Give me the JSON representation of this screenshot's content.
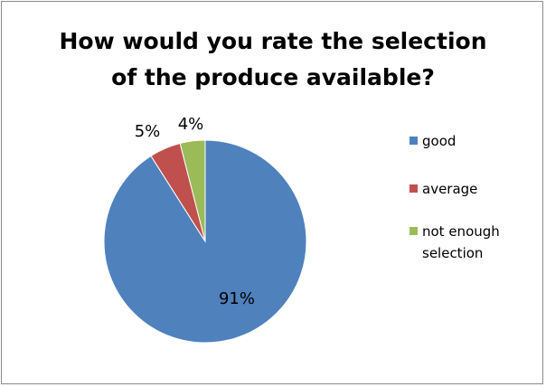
{
  "chart_data": {
    "type": "pie",
    "title": "How would you rate the selection of the produce available?",
    "title_lines": [
      "How would you rate the selection",
      "of the produce available?"
    ],
    "categories": [
      "good",
      "average",
      "not enough selection"
    ],
    "values": [
      91,
      5,
      4
    ],
    "data_labels": [
      "91%",
      "5%",
      "4%"
    ],
    "legend_lines": [
      [
        "good"
      ],
      [
        "average"
      ],
      [
        "not enough",
        "selection"
      ]
    ],
    "colors": [
      "#4f81bd",
      "#c0504d",
      "#9bbb59"
    ],
    "legend_position": "right",
    "start_angle_deg": 0,
    "direction": "clockwise"
  }
}
